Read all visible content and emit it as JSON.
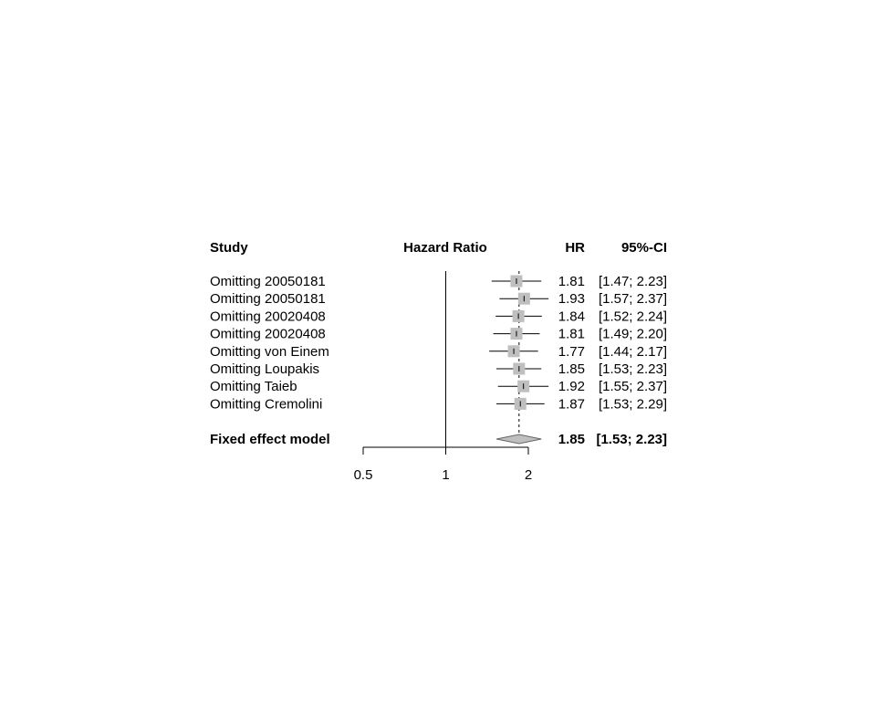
{
  "chart_data": {
    "type": "forest",
    "headers": {
      "study": "Study",
      "effect": "Hazard Ratio",
      "hr": "HR",
      "ci": "95%-CI"
    },
    "x_scale": "log",
    "xlim": [
      0.5,
      2.0
    ],
    "reference_line": 1,
    "ticks": [
      {
        "value": 0.5,
        "label": "0.5"
      },
      {
        "value": 1,
        "label": "1"
      },
      {
        "value": 2,
        "label": "2"
      }
    ],
    "studies": [
      {
        "label": "Omitting 20050181",
        "hr": 1.81,
        "lower": 1.47,
        "upper": 2.23,
        "hr_text": "1.81",
        "ci_text": "[1.47; 2.23]"
      },
      {
        "label": "Omitting 20050181",
        "hr": 1.93,
        "lower": 1.57,
        "upper": 2.37,
        "hr_text": "1.93",
        "ci_text": "[1.57; 2.37]"
      },
      {
        "label": "Omitting 20020408",
        "hr": 1.84,
        "lower": 1.52,
        "upper": 2.24,
        "hr_text": "1.84",
        "ci_text": "[1.52; 2.24]"
      },
      {
        "label": "Omitting 20020408",
        "hr": 1.81,
        "lower": 1.49,
        "upper": 2.2,
        "hr_text": "1.81",
        "ci_text": "[1.49; 2.20]"
      },
      {
        "label": "Omitting von Einem",
        "hr": 1.77,
        "lower": 1.44,
        "upper": 2.17,
        "hr_text": "1.77",
        "ci_text": "[1.44; 2.17]"
      },
      {
        "label": "Omitting Loupakis",
        "hr": 1.85,
        "lower": 1.53,
        "upper": 2.23,
        "hr_text": "1.85",
        "ci_text": "[1.53; 2.23]"
      },
      {
        "label": "Omitting Taieb",
        "hr": 1.92,
        "lower": 1.55,
        "upper": 2.37,
        "hr_text": "1.92",
        "ci_text": "[1.55; 2.37]"
      },
      {
        "label": "Omitting Cremolini",
        "hr": 1.87,
        "lower": 1.53,
        "upper": 2.29,
        "hr_text": "1.87",
        "ci_text": "[1.53; 2.29]"
      }
    ],
    "pooled": {
      "label": "Fixed effect model",
      "hr": 1.85,
      "lower": 1.53,
      "upper": 2.23,
      "hr_text": "1.85",
      "ci_text": "[1.53; 2.23]"
    },
    "colors": {
      "square": "#bfbfbf",
      "diamond": "#bfbfbf",
      "line": "#000000"
    }
  }
}
